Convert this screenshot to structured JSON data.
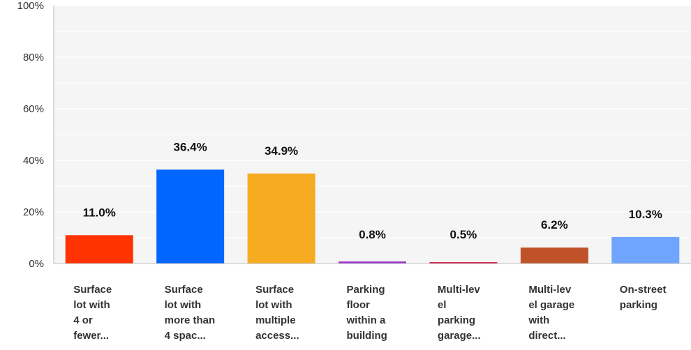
{
  "chart_data": {
    "type": "bar",
    "categories": [
      [
        "Surface",
        "lot with",
        "4 or",
        "fewer..."
      ],
      [
        "Surface",
        "lot with",
        "more than",
        "4 spac..."
      ],
      [
        "Surface",
        "lot    with",
        "multiple",
        "access..."
      ],
      [
        "Parking",
        "floor",
        "within a",
        "building"
      ],
      [
        "Multi-lev",
        "el",
        "parking",
        "garage..."
      ],
      [
        "Multi-lev",
        "el garage",
        "with",
        "direct..."
      ],
      [
        "On-street",
        "parking"
      ]
    ],
    "values": [
      11.0,
      36.4,
      34.9,
      0.8,
      0.5,
      6.2,
      10.3
    ],
    "value_labels": [
      "11.0%",
      "36.4%",
      "34.9%",
      "0.8%",
      "0.5%",
      "6.2%",
      "10.3%"
    ],
    "colors": [
      "#ff3300",
      "#0066ff",
      "#f5ac20",
      "#9933cc",
      "#cc0033",
      "#c0522a",
      "#6fa5ff"
    ],
    "ylim": [
      0,
      100
    ],
    "yticks": [
      "0%",
      "20%",
      "40%",
      "60%",
      "80%",
      "100%"
    ],
    "ytick_values": [
      0,
      20,
      40,
      60,
      80,
      100
    ],
    "grid": true,
    "background": "#f5f5f5",
    "grid_color": "#ffffff",
    "axis_color": "#bbbbbb"
  }
}
